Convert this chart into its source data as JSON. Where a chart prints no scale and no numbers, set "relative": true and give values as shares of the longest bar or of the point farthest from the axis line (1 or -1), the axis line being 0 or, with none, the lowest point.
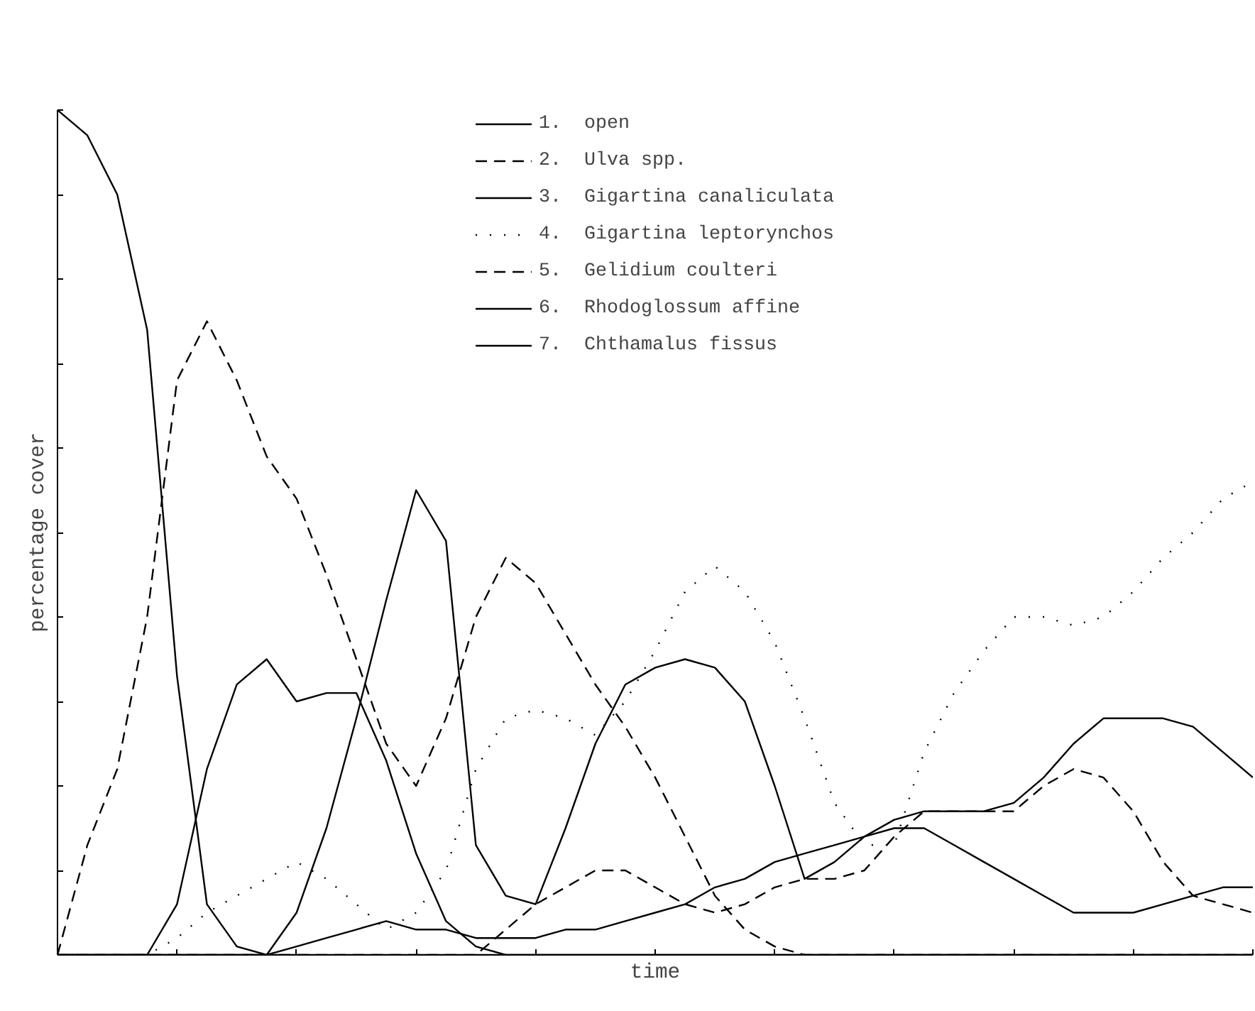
{
  "chart_data": {
    "type": "line",
    "relative": true,
    "xlabel": "time",
    "ylabel": "percentage cover",
    "categories": [
      null,
      null,
      null,
      null,
      null,
      null,
      null,
      null,
      null,
      null,
      null,
      null,
      null,
      null,
      null,
      null,
      null,
      null,
      null,
      null,
      null,
      null,
      null,
      null,
      null,
      null,
      null,
      null,
      null,
      null,
      null,
      null,
      null,
      null,
      null,
      null,
      null,
      null,
      null,
      null,
      null
    ],
    "grid": false,
    "legend": "top",
    "marker": "none",
    "series": [
      {
        "name": "1.  open",
        "color": "#000000",
        "line_style": "solid",
        "values": [
          1,
          0.97,
          0.9,
          0.74,
          0.33,
          0.06,
          0.01,
          0,
          0,
          0,
          0,
          0,
          0,
          0,
          0,
          0,
          0,
          0,
          0,
          0,
          0,
          0,
          0,
          0,
          0,
          0,
          0,
          0,
          0,
          0,
          0,
          0,
          0,
          0,
          0,
          0,
          0,
          0,
          0,
          0,
          0
        ]
      },
      {
        "name": "2.  Ulva spp.",
        "color": "#000000",
        "line_style": "dashed",
        "values": [
          0,
          0.13,
          0.22,
          0.4,
          0.68,
          0.75,
          0.68,
          0.59,
          0.54,
          0.45,
          0.35,
          0.25,
          0.2,
          0.28,
          0.4,
          0.47,
          0.44,
          0.38,
          0.32,
          0.27,
          0.21,
          0.14,
          0.07,
          0.03,
          0.01,
          0,
          0,
          0,
          0,
          0,
          0,
          0,
          0,
          0,
          0,
          0,
          0,
          0,
          0,
          0,
          0
        ]
      },
      {
        "name": "3.  Gigartina canaliculata",
        "color": "#000000",
        "line_style": "solid",
        "values": [
          0,
          0,
          0,
          0,
          0,
          0,
          0,
          0,
          0.05,
          0.15,
          0.28,
          0.42,
          0.55,
          0.49,
          0.13,
          0.07,
          0.06,
          0.15,
          0.25,
          0.32,
          0.34,
          0.35,
          0.34,
          0.3,
          0.2,
          0.09,
          0.11,
          0.14,
          0.16,
          0.17,
          0.17,
          0.17,
          0.18,
          0.21,
          0.25,
          0.28,
          0.28,
          0.28,
          0.27,
          0.24,
          0.21
        ]
      },
      {
        "name": "4.  Gigartina leptorynchos",
        "color": "#000000",
        "line_style": "dotted",
        "values": [
          0,
          0,
          0,
          0,
          0.02,
          0.05,
          0.07,
          0.09,
          0.11,
          0.09,
          0.06,
          0.03,
          0.05,
          0.1,
          0.22,
          0.28,
          0.29,
          0.28,
          0.26,
          0.3,
          0.36,
          0.43,
          0.46,
          0.43,
          0.37,
          0.28,
          0.18,
          0.13,
          0.13,
          0.24,
          0.31,
          0.36,
          0.4,
          0.4,
          0.39,
          0.4,
          0.43,
          0.47,
          0.5,
          0.54,
          0.56
        ]
      },
      {
        "name": "5.  Gelidium coulteri",
        "color": "#000000",
        "line_style": "dashed",
        "values": [
          0,
          0,
          0,
          0,
          0,
          0,
          0,
          0,
          0,
          0,
          0,
          0,
          0,
          0,
          0,
          0.03,
          0.06,
          0.08,
          0.1,
          0.1,
          0.08,
          0.06,
          0.05,
          0.06,
          0.08,
          0.09,
          0.09,
          0.1,
          0.14,
          0.17,
          0.17,
          0.17,
          0.17,
          0.2,
          0.22,
          0.21,
          0.17,
          0.11,
          0.07,
          0.06,
          0.05
        ]
      },
      {
        "name": "6.  Rhodoglossum affine",
        "color": "#000000",
        "line_style": "solid",
        "values": [
          0,
          0,
          0,
          0,
          0.06,
          0.22,
          0.32,
          0.35,
          0.3,
          0.31,
          0.31,
          0.23,
          0.12,
          0.04,
          0.01,
          0,
          0,
          0,
          0,
          0,
          0,
          0,
          0,
          0,
          0,
          0,
          0,
          0,
          0,
          0,
          0,
          0,
          0,
          0,
          0,
          0,
          0,
          0,
          0,
          0,
          0
        ]
      },
      {
        "name": "7.  Chthamalus fissus",
        "color": "#000000",
        "line_style": "solid",
        "values": [
          0,
          0,
          0,
          0,
          0,
          0,
          0,
          0,
          0.01,
          0.02,
          0.03,
          0.04,
          0.03,
          0.03,
          0.02,
          0.02,
          0.02,
          0.03,
          0.03,
          0.04,
          0.05,
          0.06,
          0.08,
          0.09,
          0.11,
          0.12,
          0.13,
          0.14,
          0.15,
          0.15,
          0.13,
          0.11,
          0.09,
          0.07,
          0.05,
          0.05,
          0.05,
          0.06,
          0.07,
          0.08,
          0.08
        ]
      }
    ]
  }
}
